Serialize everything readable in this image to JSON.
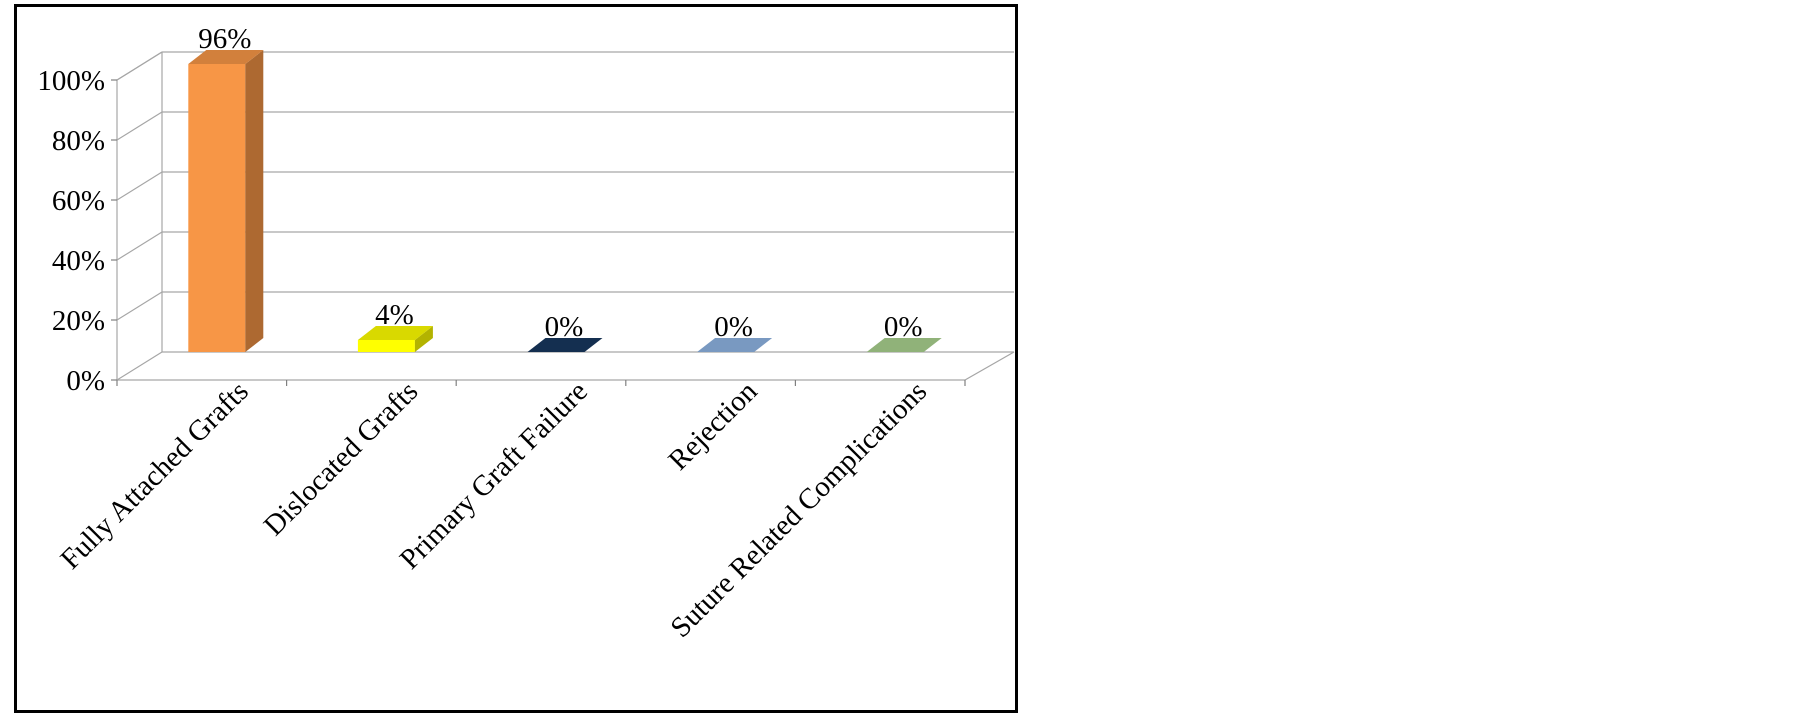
{
  "chart_data": {
    "type": "bar",
    "style": "3d-column",
    "title": "",
    "xlabel": "",
    "ylabel": "",
    "ylim": [
      0,
      100
    ],
    "y_ticks": [
      0,
      20,
      40,
      60,
      80,
      100
    ],
    "y_tick_labels": [
      "0%",
      "20%",
      "40%",
      "60%",
      "80%",
      "100%"
    ],
    "categories": [
      "Fully Attached Grafts",
      "Dislocated Grafts",
      "Primary Graft Failure",
      "Rejection",
      "Suture Related Complications"
    ],
    "values": [
      96,
      4,
      0,
      0,
      0
    ],
    "data_labels": [
      "96%",
      "4%",
      "0%",
      "0%",
      "0%"
    ],
    "colors": [
      "#f79646",
      "#ffff00",
      "#17375e",
      "#8eb4e3",
      "#a9d18e"
    ],
    "grid": true,
    "legend": "none"
  }
}
